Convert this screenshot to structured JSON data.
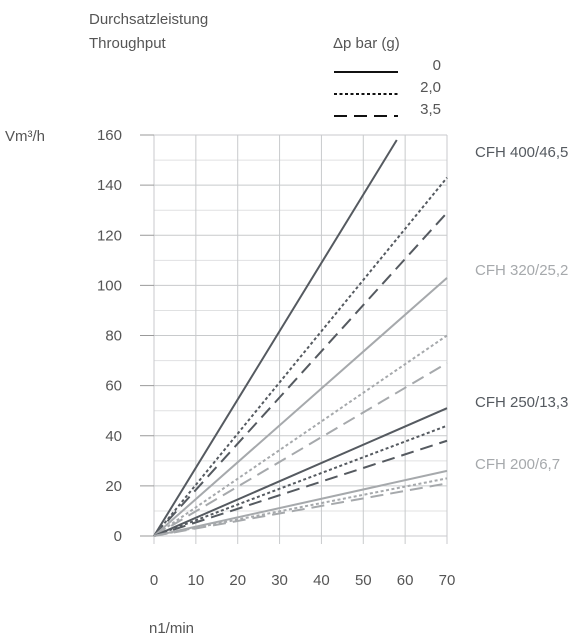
{
  "chart_data": {
    "type": "line",
    "title_de": "Durchsatzleistung",
    "title_en": "Throughput",
    "ylabel": "Vm³/h",
    "xlabel": "n1/min",
    "xlim": [
      0,
      70
    ],
    "ylim": [
      0,
      160
    ],
    "xticks": [
      0,
      10,
      20,
      30,
      40,
      50,
      60,
      70
    ],
    "yticks": [
      0,
      20,
      40,
      60,
      80,
      100,
      120,
      140,
      160
    ],
    "grid": true,
    "legend": {
      "title": "Δp bar (g)",
      "placement": "top-right",
      "entries": [
        {
          "label": "0",
          "dash": "solid"
        },
        {
          "label": "2,0",
          "dash": "dotted"
        },
        {
          "label": "3,5",
          "dash": "dashed"
        }
      ]
    },
    "groups": [
      {
        "name": "CFH 400/46,5",
        "color": "#555a60",
        "series": [
          {
            "dp": "0",
            "dash": "solid",
            "x": [
              0,
              58
            ],
            "y": [
              0,
              158
            ]
          },
          {
            "dp": "2,0",
            "dash": "dotted",
            "x": [
              0,
              70
            ],
            "y": [
              0,
              143
            ]
          },
          {
            "dp": "3,5",
            "dash": "dashed",
            "x": [
              0,
              70
            ],
            "y": [
              0,
              129
            ]
          }
        ]
      },
      {
        "name": "CFH 320/25,2",
        "color": "#a6a9ac",
        "series": [
          {
            "dp": "0",
            "dash": "solid",
            "x": [
              0,
              70
            ],
            "y": [
              0,
              103
            ]
          },
          {
            "dp": "2,0",
            "dash": "dotted",
            "x": [
              0,
              70
            ],
            "y": [
              0,
              80
            ]
          },
          {
            "dp": "3,5",
            "dash": "dashed",
            "x": [
              0,
              70
            ],
            "y": [
              0,
              69
            ]
          }
        ]
      },
      {
        "name": "CFH 250/13,3",
        "color": "#555a60",
        "series": [
          {
            "dp": "0",
            "dash": "solid",
            "x": [
              0,
              70
            ],
            "y": [
              0,
              51
            ]
          },
          {
            "dp": "2,0",
            "dash": "dotted",
            "x": [
              0,
              70
            ],
            "y": [
              0,
              44
            ]
          },
          {
            "dp": "3,5",
            "dash": "dashed",
            "x": [
              0,
              70
            ],
            "y": [
              0,
              38
            ]
          }
        ]
      },
      {
        "name": "CFH 200/6,7",
        "color": "#a6a9ac",
        "series": [
          {
            "dp": "0",
            "dash": "solid",
            "x": [
              0,
              70
            ],
            "y": [
              0,
              26
            ]
          },
          {
            "dp": "2,0",
            "dash": "dotted",
            "x": [
              0,
              70
            ],
            "y": [
              0,
              23
            ]
          },
          {
            "dp": "3,5",
            "dash": "dashed",
            "x": [
              0,
              70
            ],
            "y": [
              0,
              21
            ]
          }
        ]
      }
    ]
  }
}
